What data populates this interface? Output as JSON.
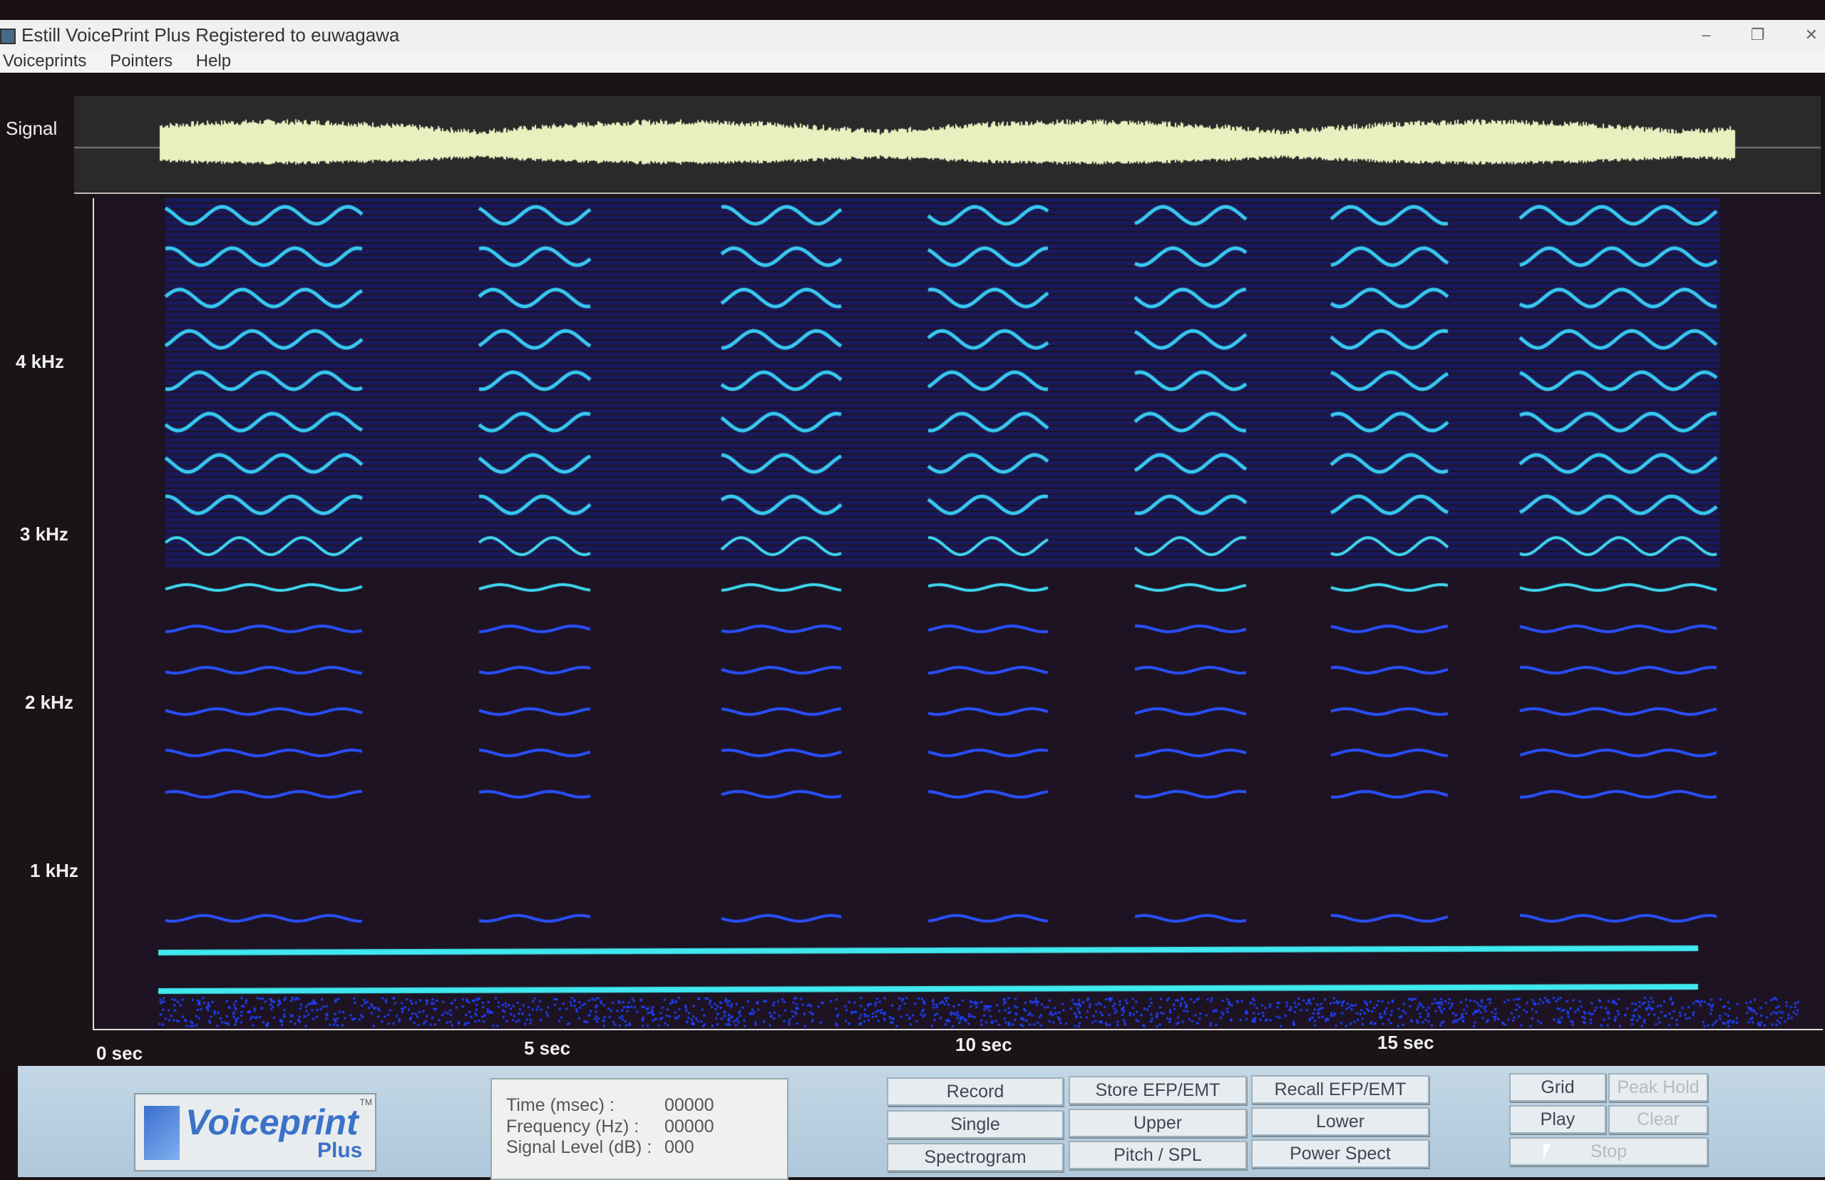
{
  "window": {
    "title": "Estill VoicePrint Plus Registered to euwagawa",
    "controls": [
      "–",
      "❐",
      "✕"
    ]
  },
  "menu": [
    "Voiceprints",
    "Pointers",
    "Help"
  ],
  "axis": {
    "signal_label": "Signal",
    "frequency_labels": [
      "4 kHz",
      "3 kHz",
      "2 kHz",
      "1 kHz"
    ],
    "time_labels": [
      "0  sec",
      "5  sec",
      "10 sec",
      "15 sec"
    ]
  },
  "colors": {
    "waveform": "#e8f0c0",
    "spectrogram_low": "#1020c0",
    "spectrogram_high": "#40e0f0",
    "panel": "#bcd2e2"
  },
  "logo": {
    "text": "Voiceprint",
    "sub": "Plus",
    "tm": "TM"
  },
  "readout": {
    "time_label": "Time (msec) :",
    "time_value": "00000",
    "freq_label": "Frequency (Hz) :",
    "freq_value": "00000",
    "level_label": "Signal Level (dB) :",
    "level_value": "000"
  },
  "buttons": {
    "record": "Record",
    "store": "Store EFP/EMT",
    "recall": "Recall EFP/EMT",
    "single": "Single",
    "upper": "Upper",
    "lower": "Lower",
    "spectrogram": "Spectrogram",
    "pitch": "Pitch / SPL",
    "power": "Power Spect",
    "grid": "Grid",
    "peak_hold": "Peak Hold",
    "play": "Play",
    "clear": "Clear",
    "stop": "Stop"
  }
}
